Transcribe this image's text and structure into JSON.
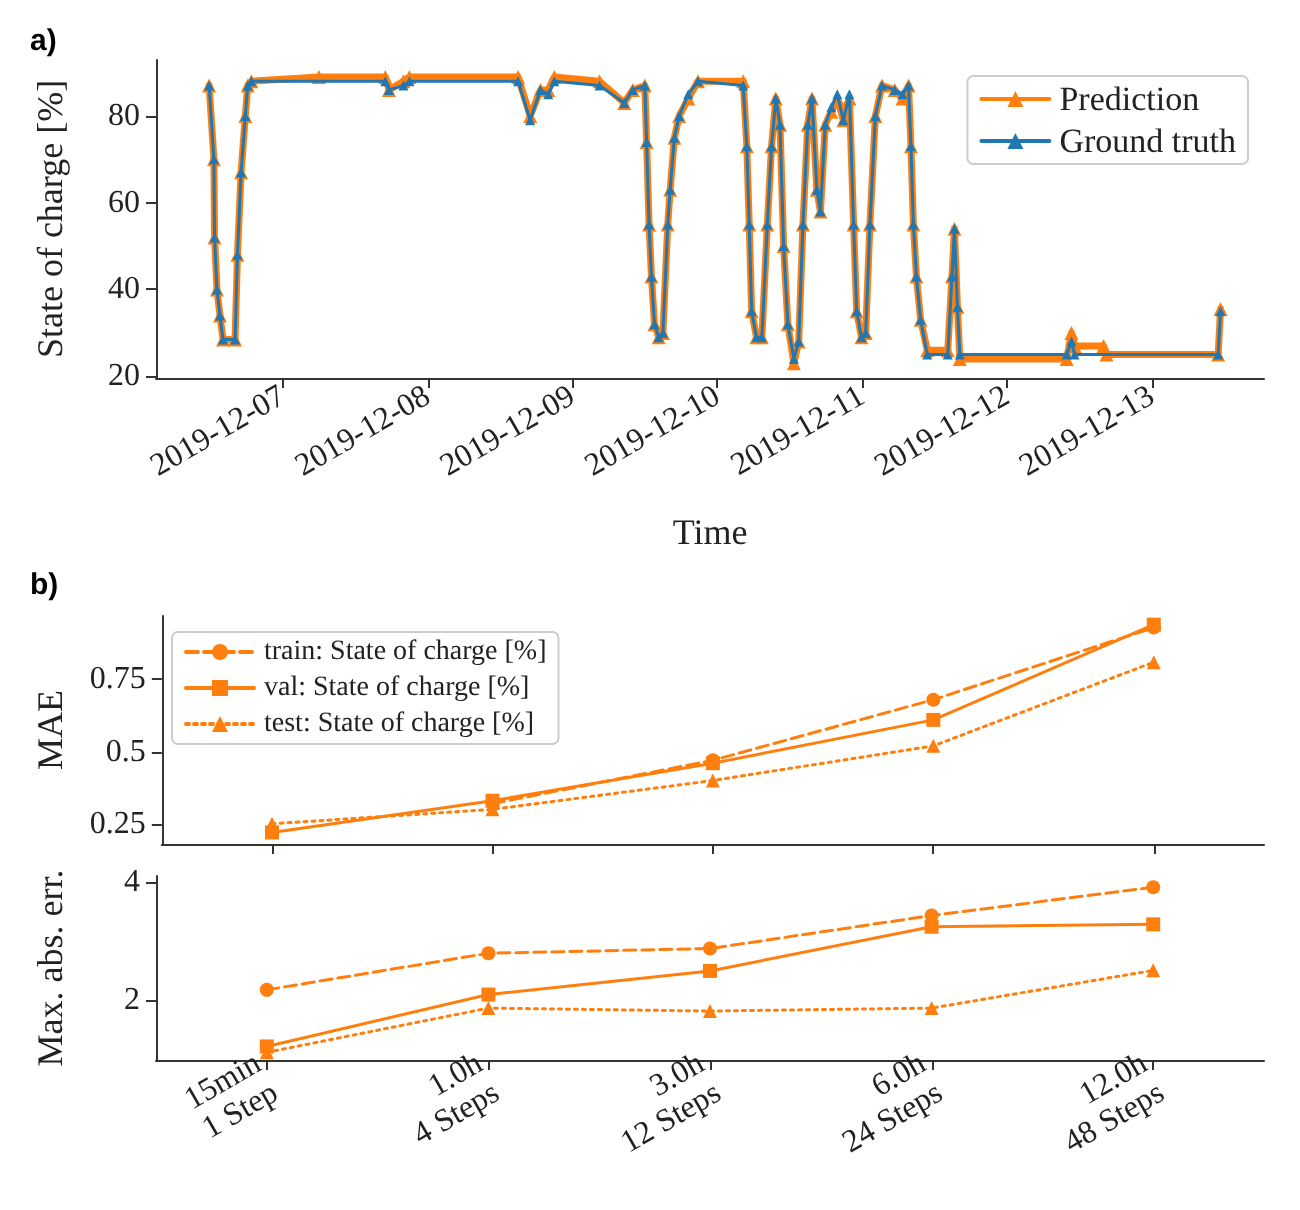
{
  "chart_data": [
    {
      "type": "line",
      "title": "a)",
      "xlabel": "Time",
      "ylabel": "State of charge [%]",
      "xlim": [
        "2019-12-06T03:00",
        "2019-12-13T18:36"
      ],
      "xticks": [
        "2019-12-07",
        "2019-12-08",
        "2019-12-09",
        "2019-12-10",
        "2019-12-11",
        "2019-12-12",
        "2019-12-13"
      ],
      "ylim": [
        19.6,
        92.9
      ],
      "yticks": [
        20,
        40,
        60,
        80
      ],
      "legend": "top right",
      "marker": "triangle",
      "grid": false,
      "series": [
        {
          "name": "Prediction",
          "color": "#ff7f0e",
          "x": [
            "2019-12-06T11:48",
            "2019-12-06T12:36",
            "2019-12-06T12:42",
            "2019-12-06T13:06",
            "2019-12-06T13:36",
            "2019-12-06T14:06",
            "2019-12-06T16:06",
            "2019-12-06T16:30",
            "2019-12-06T17:06",
            "2019-12-06T17:48",
            "2019-12-06T18:12",
            "2019-12-06T18:48",
            "2019-12-07T06:00",
            "2019-12-07T17:00",
            "2019-12-07T17:36",
            "2019-12-07T20:00",
            "2019-12-07T21:00",
            "2019-12-08T15:00",
            "2019-12-08T17:00",
            "2019-12-08T18:42",
            "2019-12-08T20:00",
            "2019-12-08T21:00",
            "2019-12-09T04:30",
            "2019-12-09T08:36",
            "2019-12-09T10:00",
            "2019-12-09T12:00",
            "2019-12-09T12:18",
            "2019-12-09T12:42",
            "2019-12-09T13:06",
            "2019-12-09T13:36",
            "2019-12-09T14:18",
            "2019-12-09T15:00",
            "2019-12-09T15:48",
            "2019-12-09T16:12",
            "2019-12-09T16:54",
            "2019-12-09T17:42",
            "2019-12-09T19:12",
            "2019-12-09T20:48",
            "2019-12-10T04:18",
            "2019-12-10T04:54",
            "2019-12-10T05:18",
            "2019-12-10T05:42",
            "2019-12-10T06:30",
            "2019-12-10T07:24",
            "2019-12-10T08:18",
            "2019-12-10T09:00",
            "2019-12-10T09:42",
            "2019-12-10T10:24",
            "2019-12-10T11:00",
            "2019-12-10T11:42",
            "2019-12-10T12:42",
            "2019-12-10T13:30",
            "2019-12-10T14:12",
            "2019-12-10T15:00",
            "2019-12-10T15:42",
            "2019-12-10T16:30",
            "2019-12-10T17:06",
            "2019-12-10T17:54",
            "2019-12-10T18:54",
            "2019-12-10T19:54",
            "2019-12-10T20:54",
            "2019-12-10T21:54",
            "2019-12-10T22:36",
            "2019-12-10T23:06",
            "2019-12-10T23:54",
            "2019-12-11T00:36",
            "2019-12-11T01:18",
            "2019-12-11T02:12",
            "2019-12-11T03:18",
            "2019-12-11T05:24",
            "2019-12-11T06:42",
            "2019-12-11T07:42",
            "2019-12-11T08:06",
            "2019-12-11T08:30",
            "2019-12-11T09:00",
            "2019-12-11T09:42",
            "2019-12-11T10:48",
            "2019-12-11T14:12",
            "2019-12-11T14:54",
            "2019-12-11T15:18",
            "2019-12-11T15:48",
            "2019-12-11T16:12",
            "2019-12-12T09:54",
            "2019-12-12T10:42",
            "2019-12-12T11:12",
            "2019-12-12T16:00",
            "2019-12-12T16:30",
            "2019-12-13T11:00",
            "2019-12-13T11:24"
          ],
          "values": [
            87,
            70,
            52,
            40,
            34,
            28.5,
            28.5,
            48,
            67,
            80,
            87,
            88,
            89,
            89,
            86,
            88,
            89,
            89,
            80,
            86,
            86,
            89,
            88,
            83,
            86,
            87,
            74,
            55,
            43,
            32,
            29,
            30,
            55,
            63,
            75,
            80,
            84,
            88,
            88,
            73,
            55,
            35,
            29,
            29,
            55,
            73,
            84,
            78,
            50,
            32,
            23,
            28,
            55,
            78,
            84,
            63,
            58,
            78,
            81,
            84,
            79,
            84,
            55,
            35,
            29,
            30,
            55,
            80,
            87,
            86,
            84,
            87,
            73,
            55,
            43,
            33,
            26,
            26,
            43,
            54,
            36,
            24,
            24,
            30,
            27,
            27,
            25,
            25,
            35.5
          ]
        },
        {
          "name": "Ground truth",
          "color": "#1f77b4",
          "x": [
            "2019-12-06T11:48",
            "2019-12-06T12:36",
            "2019-12-06T12:42",
            "2019-12-06T13:06",
            "2019-12-06T13:36",
            "2019-12-06T14:06",
            "2019-12-06T16:06",
            "2019-12-06T16:30",
            "2019-12-06T17:06",
            "2019-12-06T17:48",
            "2019-12-06T18:12",
            "2019-12-06T18:48",
            "2019-12-07T17:00",
            "2019-12-07T17:36",
            "2019-12-07T20:00",
            "2019-12-07T21:00",
            "2019-12-08T15:00",
            "2019-12-08T17:00",
            "2019-12-08T18:42",
            "2019-12-08T20:00",
            "2019-12-08T21:00",
            "2019-12-09T04:30",
            "2019-12-09T08:36",
            "2019-12-09T10:00",
            "2019-12-09T12:00",
            "2019-12-09T12:18",
            "2019-12-09T12:42",
            "2019-12-09T13:06",
            "2019-12-09T13:36",
            "2019-12-09T14:18",
            "2019-12-09T15:00",
            "2019-12-09T15:48",
            "2019-12-09T16:12",
            "2019-12-09T16:54",
            "2019-12-09T17:42",
            "2019-12-09T19:12",
            "2019-12-09T20:48",
            "2019-12-10T04:18",
            "2019-12-10T04:54",
            "2019-12-10T05:18",
            "2019-12-10T05:42",
            "2019-12-10T06:30",
            "2019-12-10T07:24",
            "2019-12-10T08:18",
            "2019-12-10T09:00",
            "2019-12-10T09:42",
            "2019-12-10T10:24",
            "2019-12-10T11:00",
            "2019-12-10T11:42",
            "2019-12-10T12:42",
            "2019-12-10T13:30",
            "2019-12-10T14:12",
            "2019-12-10T15:00",
            "2019-12-10T15:42",
            "2019-12-10T16:30",
            "2019-12-10T17:06",
            "2019-12-10T17:54",
            "2019-12-10T18:54",
            "2019-12-10T19:54",
            "2019-12-10T20:54",
            "2019-12-10T21:54",
            "2019-12-10T22:36",
            "2019-12-10T23:06",
            "2019-12-10T23:54",
            "2019-12-11T00:36",
            "2019-12-11T01:18",
            "2019-12-11T02:12",
            "2019-12-11T03:18",
            "2019-12-11T05:24",
            "2019-12-11T06:42",
            "2019-12-11T07:42",
            "2019-12-11T08:06",
            "2019-12-11T08:30",
            "2019-12-11T09:00",
            "2019-12-11T09:42",
            "2019-12-11T10:48",
            "2019-12-11T14:12",
            "2019-12-11T14:54",
            "2019-12-11T15:18",
            "2019-12-11T15:48",
            "2019-12-11T16:12",
            "2019-12-12T09:54",
            "2019-12-12T10:42",
            "2019-12-12T11:12",
            "2019-12-13T11:00",
            "2019-12-13T11:24"
          ],
          "values": [
            87,
            70,
            52,
            40,
            34,
            28.5,
            28.5,
            48,
            67,
            80,
            87,
            88,
            88,
            86,
            87,
            88,
            88,
            79,
            86,
            85,
            88,
            87,
            83,
            86,
            87,
            74,
            55,
            43,
            32,
            29,
            30,
            55,
            63,
            75,
            80,
            85,
            88,
            87,
            73,
            55,
            35,
            29,
            29,
            55,
            73,
            84,
            78,
            50,
            32,
            24,
            28,
            55,
            78,
            84,
            63,
            58,
            78,
            82,
            85,
            79,
            85,
            55,
            35,
            29,
            30,
            55,
            80,
            87,
            86,
            85,
            87,
            73,
            55,
            43,
            33,
            25,
            25,
            43,
            54,
            36,
            25,
            25,
            28,
            25,
            25,
            35
          ]
        }
      ]
    },
    {
      "type": "line",
      "title": "b)",
      "ylabel": "MAE",
      "categories": [
        null,
        null,
        null,
        null,
        null
      ],
      "ylim": [
        0.18,
        0.97
      ],
      "yticks": [
        0.25,
        0.5,
        0.75
      ],
      "tick_labels": "y",
      "legend": "top left",
      "grid": false,
      "series": [
        {
          "name": "train: State of charge [%]",
          "color": "#ff7f0e",
          "marker": "circle",
          "line_style": "dashed",
          "values": [
            null,
            0.32,
            0.47,
            0.68,
            0.93
          ]
        },
        {
          "name": "val: State of charge [%]",
          "color": "#ff7f0e",
          "marker": "square",
          "line_style": "solid",
          "values": [
            0.22,
            0.33,
            0.46,
            0.61,
            0.94
          ]
        },
        {
          "name": "test: State of charge [%]",
          "color": "#ff7f0e",
          "marker": "triangle",
          "line_style": "dotted",
          "values": [
            0.25,
            0.3,
            0.4,
            0.52,
            0.81
          ]
        }
      ]
    },
    {
      "type": "line",
      "ylabel": "Max. abs. err.",
      "categories": [
        "15min\n1 Step",
        "1.0h\n4 Steps",
        "3.0h\n12 Steps",
        "6.0h\n24 Steps",
        "12.0h\n48 Steps"
      ],
      "ylim": [
        0.99,
        4.11
      ],
      "yticks": [
        2,
        4
      ],
      "grid": false,
      "series": [
        {
          "color": "#ff7f0e",
          "marker": "circle",
          "line_style": "dashed",
          "values": [
            2.18,
            2.8,
            2.88,
            3.44,
            3.92
          ]
        },
        {
          "color": "#ff7f0e",
          "marker": "square",
          "line_style": "solid",
          "values": [
            1.22,
            2.1,
            2.5,
            3.25,
            3.29
          ]
        },
        {
          "color": "#ff7f0e",
          "marker": "triangle",
          "line_style": "dotted",
          "values": [
            1.12,
            1.87,
            1.82,
            1.87,
            2.51
          ]
        }
      ]
    }
  ]
}
